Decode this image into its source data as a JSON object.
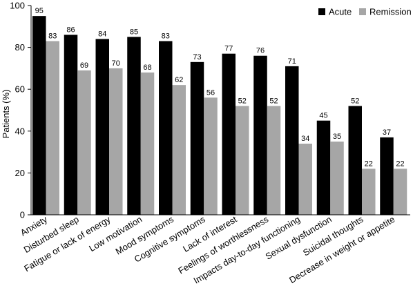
{
  "chart_data": {
    "type": "bar",
    "ylabel": "Patients (%)",
    "ylim": [
      0,
      100
    ],
    "yticks": [
      0,
      20,
      40,
      60,
      80,
      100
    ],
    "grid": false,
    "legend_position": "top-right",
    "categories": [
      "Anxiety",
      "Disturbed sleep",
      "Fatigue or lack of energy",
      "Low motivation",
      "Mood symptoms",
      "Cognitive symptoms",
      "Lack of interest",
      "Feelings of worthlessness",
      "Impacts day-to-day functioning",
      "Sexual dysfunction",
      "Suicidal thoughts",
      "Decrease in weight or appetite"
    ],
    "series": [
      {
        "name": "Acute",
        "color": "#000000",
        "values": [
          95,
          86,
          84,
          85,
          83,
          73,
          77,
          76,
          71,
          45,
          52,
          37
        ]
      },
      {
        "name": "Remission",
        "color": "#a6a6a6",
        "values": [
          83,
          69,
          70,
          68,
          62,
          56,
          52,
          52,
          34,
          35,
          22,
          22
        ]
      }
    ]
  }
}
